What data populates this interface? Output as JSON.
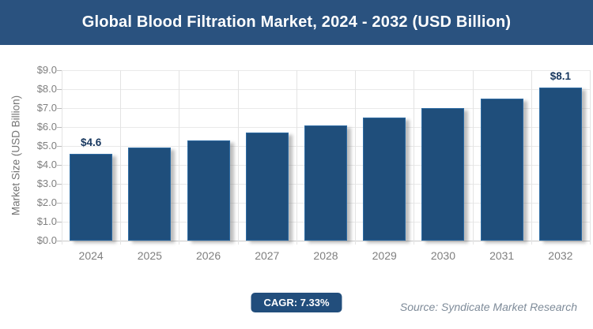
{
  "header": {
    "title": "Global Blood Filtration Market, 2024 - 2032 (USD Billion)"
  },
  "chart_data": {
    "type": "bar",
    "categories": [
      "2024",
      "2025",
      "2026",
      "2027",
      "2028",
      "2029",
      "2030",
      "2031",
      "2032"
    ],
    "values": [
      4.6,
      4.9,
      5.3,
      5.7,
      6.1,
      6.5,
      7.0,
      7.5,
      8.1
    ],
    "data_labels": [
      {
        "index": 0,
        "text": "$4.6"
      },
      {
        "index": 8,
        "text": "$8.1"
      }
    ],
    "title": "Global Blood Filtration Market, 2024 - 2032 (USD Billion)",
    "xlabel": "",
    "ylabel": "Market Size (USD Billion)",
    "ylim": [
      0,
      9
    ],
    "ytick_labels_top_to_bottom": [
      "$9.0",
      "$8.0",
      "$7.0",
      "$6.0",
      "$5.0",
      "$4.0",
      "$3.0",
      "$2.0",
      "$1.0",
      "$0.0"
    ],
    "grid": true,
    "legend": false,
    "bar_color": "#1F4E7B"
  },
  "footer": {
    "cagr_label": "CAGR: 7.33%",
    "source": "Source: Syndicate Market Research"
  },
  "colors": {
    "header_bg": "#2A527F",
    "bar_fill": "#1F4E7B",
    "badge_bg": "#224E7C",
    "axis_text": "#7F7F7F",
    "data_label_text": "#17375E",
    "source_text": "#7E8B99",
    "gridline": "#E9E9E9"
  }
}
